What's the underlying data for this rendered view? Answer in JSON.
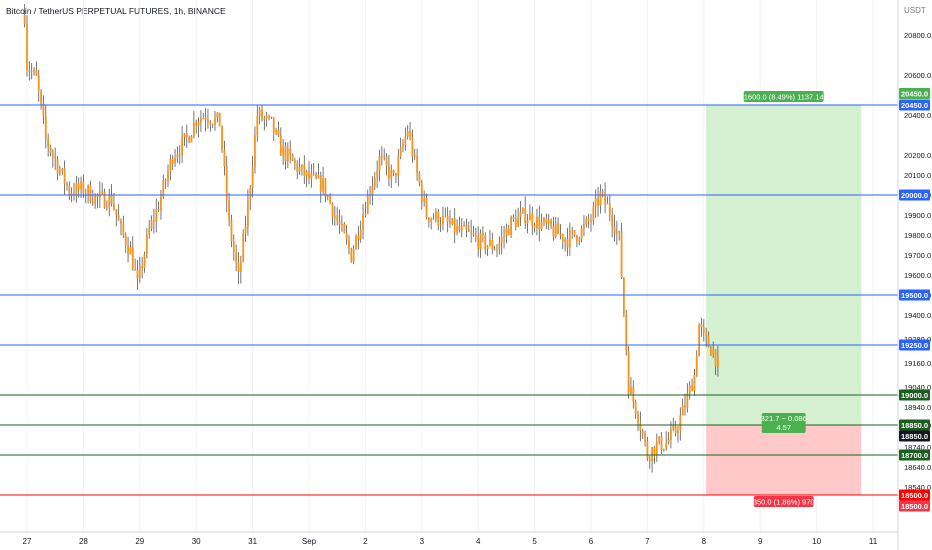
{
  "chart_data": {
    "type": "candlestick",
    "title": "Bitcoin / TetherUS PERPETUAL FUTURES, 1h, BINANCE",
    "currency": "USDT",
    "y_axis": {
      "ticks": [
        20800,
        20600,
        20400,
        20200,
        20100,
        20000,
        19900,
        19800,
        19700,
        19600,
        19500,
        19400,
        19280,
        19160,
        19040,
        18940,
        18850,
        18740,
        18640,
        18540
      ],
      "tick_labels": [
        "20800.0",
        "20600.0",
        "20400.0",
        "20200.0",
        "20100.0",
        "20000.0",
        "19900.0",
        "19800.0",
        "19700.0",
        "19600.0",
        "19500.0",
        "19400.0",
        "19280.0",
        "19160.0",
        "19040.0",
        "18940.0",
        "18850.0",
        "18740.0",
        "18640.0",
        "18540.0"
      ]
    },
    "x_axis": {
      "ticks": [
        {
          "label": "27",
          "t": 0
        },
        {
          "label": "28",
          "t": 24
        },
        {
          "label": "29",
          "t": 48
        },
        {
          "label": "30",
          "t": 72
        },
        {
          "label": "31",
          "t": 96
        },
        {
          "label": "Sep",
          "t": 120
        },
        {
          "label": "2",
          "t": 144
        },
        {
          "label": "3",
          "t": 168
        },
        {
          "label": "4",
          "t": 192
        },
        {
          "label": "5",
          "t": 216
        },
        {
          "label": "6",
          "t": 240
        },
        {
          "label": "7",
          "t": 264
        },
        {
          "label": "8",
          "t": 288
        },
        {
          "label": "9",
          "t": 312
        },
        {
          "label": "10",
          "t": 336
        },
        {
          "label": "11",
          "t": 360
        }
      ]
    },
    "price_path": [
      [
        -1,
        20900
      ],
      [
        0,
        20650
      ],
      [
        4,
        20580
      ],
      [
        8,
        20280
      ],
      [
        14,
        20120
      ],
      [
        18,
        20020
      ],
      [
        24,
        20030
      ],
      [
        30,
        19980
      ],
      [
        36,
        19980
      ],
      [
        40,
        19820
      ],
      [
        44,
        19720
      ],
      [
        47,
        19550
      ],
      [
        52,
        19820
      ],
      [
        56,
        19950
      ],
      [
        62,
        20200
      ],
      [
        68,
        20280
      ],
      [
        72,
        20380
      ],
      [
        76,
        20400
      ],
      [
        82,
        20360
      ],
      [
        86,
        19850
      ],
      [
        90,
        19580
      ],
      [
        94,
        19950
      ],
      [
        98,
        20400
      ],
      [
        104,
        20350
      ],
      [
        108,
        20230
      ],
      [
        114,
        20150
      ],
      [
        120,
        20080
      ],
      [
        126,
        20050
      ],
      [
        132,
        19870
      ],
      [
        138,
        19700
      ],
      [
        144,
        19950
      ],
      [
        150,
        20180
      ],
      [
        156,
        20080
      ],
      [
        162,
        20330
      ],
      [
        166,
        20100
      ],
      [
        170,
        19900
      ],
      [
        176,
        19880
      ],
      [
        182,
        19830
      ],
      [
        188,
        19800
      ],
      [
        194,
        19760
      ],
      [
        200,
        19740
      ],
      [
        206,
        19860
      ],
      [
        212,
        19900
      ],
      [
        218,
        19860
      ],
      [
        224,
        19820
      ],
      [
        230,
        19780
      ],
      [
        236,
        19820
      ],
      [
        240,
        19880
      ],
      [
        244,
        20000
      ],
      [
        248,
        19920
      ],
      [
        252,
        19780
      ],
      [
        256,
        19050
      ],
      [
        260,
        18900
      ],
      [
        264,
        18700
      ],
      [
        268,
        18750
      ],
      [
        272,
        18760
      ],
      [
        276,
        18820
      ],
      [
        280,
        18950
      ],
      [
        284,
        19100
      ],
      [
        286,
        19350
      ],
      [
        288,
        19280
      ],
      [
        292,
        19220
      ],
      [
        294,
        19150
      ]
    ],
    "horizontal_lines": [
      {
        "price": 20450,
        "color": "#2962ff",
        "label": "20450.0"
      },
      {
        "price": 20000,
        "color": "#2962ff",
        "label": "20000.0"
      },
      {
        "price": 19500,
        "color": "#2962ff",
        "label": "19500.0"
      },
      {
        "price": 19250,
        "color": "#2962ff",
        "label": "19250.0"
      },
      {
        "price": 19000,
        "color": "#1b5e20",
        "label": "19000.0"
      },
      {
        "price": 18850,
        "color": "#1b5e20",
        "label": "18850.0"
      },
      {
        "price": 18700,
        "color": "#1b5e20",
        "label": "18700.0"
      },
      {
        "price": 18500,
        "color": "#ff0000",
        "label": "18500.0"
      }
    ],
    "position": {
      "start_t": 289,
      "end_t": 355,
      "entry": 18850,
      "target": 20450,
      "stop": 18500,
      "target_text": "1600.0 (8.49%) 1137.14",
      "entry_text_1": "321.7 ~ 0.086",
      "entry_text_2": "4.57",
      "stop_text": "350.0 (1.86%) 970",
      "target_price_label": "20450.0",
      "entry_price_label": "18850.0",
      "stop_price_label": "18500.0"
    },
    "current_price": 19160,
    "colors": {
      "candle": "#f7931a",
      "wick": "#555555",
      "profit_zone": "#d4f0d1",
      "loss_zone": "#ffc9c9",
      "profit_tag": "#4caf50",
      "loss_tag": "#f23645",
      "entry_tag_bg": "#e0e3eb",
      "axis_text": "#131722",
      "grid": "#e6e6e6"
    }
  }
}
